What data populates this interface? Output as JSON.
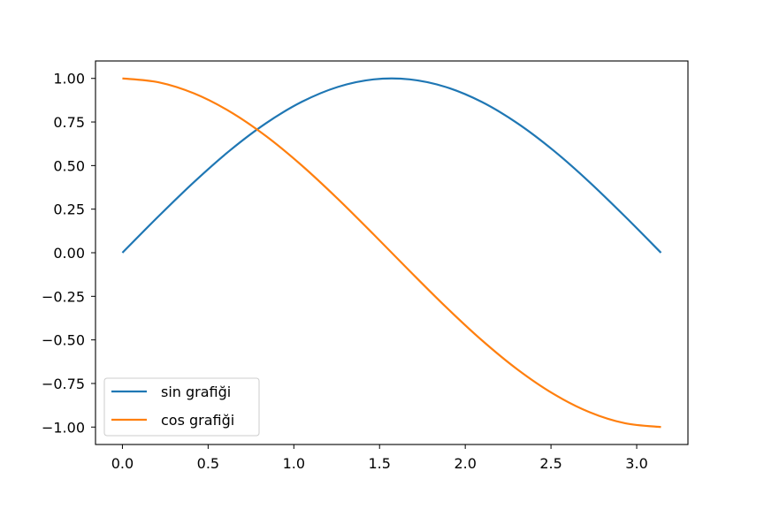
{
  "chart_data": {
    "type": "line",
    "title": "",
    "xlabel": "",
    "ylabel": "",
    "xlim": [
      -0.157,
      3.299
    ],
    "ylim": [
      -1.1,
      1.1
    ],
    "x_ticks": [
      0.0,
      0.5,
      1.0,
      1.5,
      2.0,
      2.5,
      3.0
    ],
    "x_tick_labels": [
      "0.0",
      "0.5",
      "1.0",
      "1.5",
      "2.0",
      "2.5",
      "3.0"
    ],
    "y_ticks": [
      1.0,
      0.75,
      0.5,
      0.25,
      0.0,
      -0.25,
      -0.5,
      -0.75,
      -1.0
    ],
    "y_tick_labels": [
      "1.00",
      "0.75",
      "0.50",
      "0.25",
      "0.00",
      "−0.25",
      "−0.50",
      "−0.75",
      "−1.00"
    ],
    "grid": false,
    "legend_position": "lower-left",
    "x": [
      0.0,
      0.2094,
      0.4189,
      0.6283,
      0.8378,
      1.0472,
      1.2566,
      1.4661,
      1.6755,
      1.885,
      2.0944,
      2.3038,
      2.5133,
      2.7227,
      2.9322,
      3.1416
    ],
    "series": [
      {
        "name": "sin grafiği",
        "color": "#1f77b4",
        "values": [
          0.0,
          0.2079,
          0.4067,
          0.5878,
          0.7431,
          0.866,
          0.9511,
          0.9945,
          0.9945,
          0.9511,
          0.866,
          0.7431,
          0.5878,
          0.4067,
          0.2079,
          0.0
        ]
      },
      {
        "name": "cos grafiği",
        "color": "#ff7f0e",
        "values": [
          1.0,
          0.9781,
          0.9135,
          0.809,
          0.6691,
          0.5,
          0.309,
          0.1045,
          -0.1045,
          -0.309,
          -0.5,
          -0.6691,
          -0.809,
          -0.9135,
          -0.9781,
          -1.0
        ]
      }
    ]
  }
}
